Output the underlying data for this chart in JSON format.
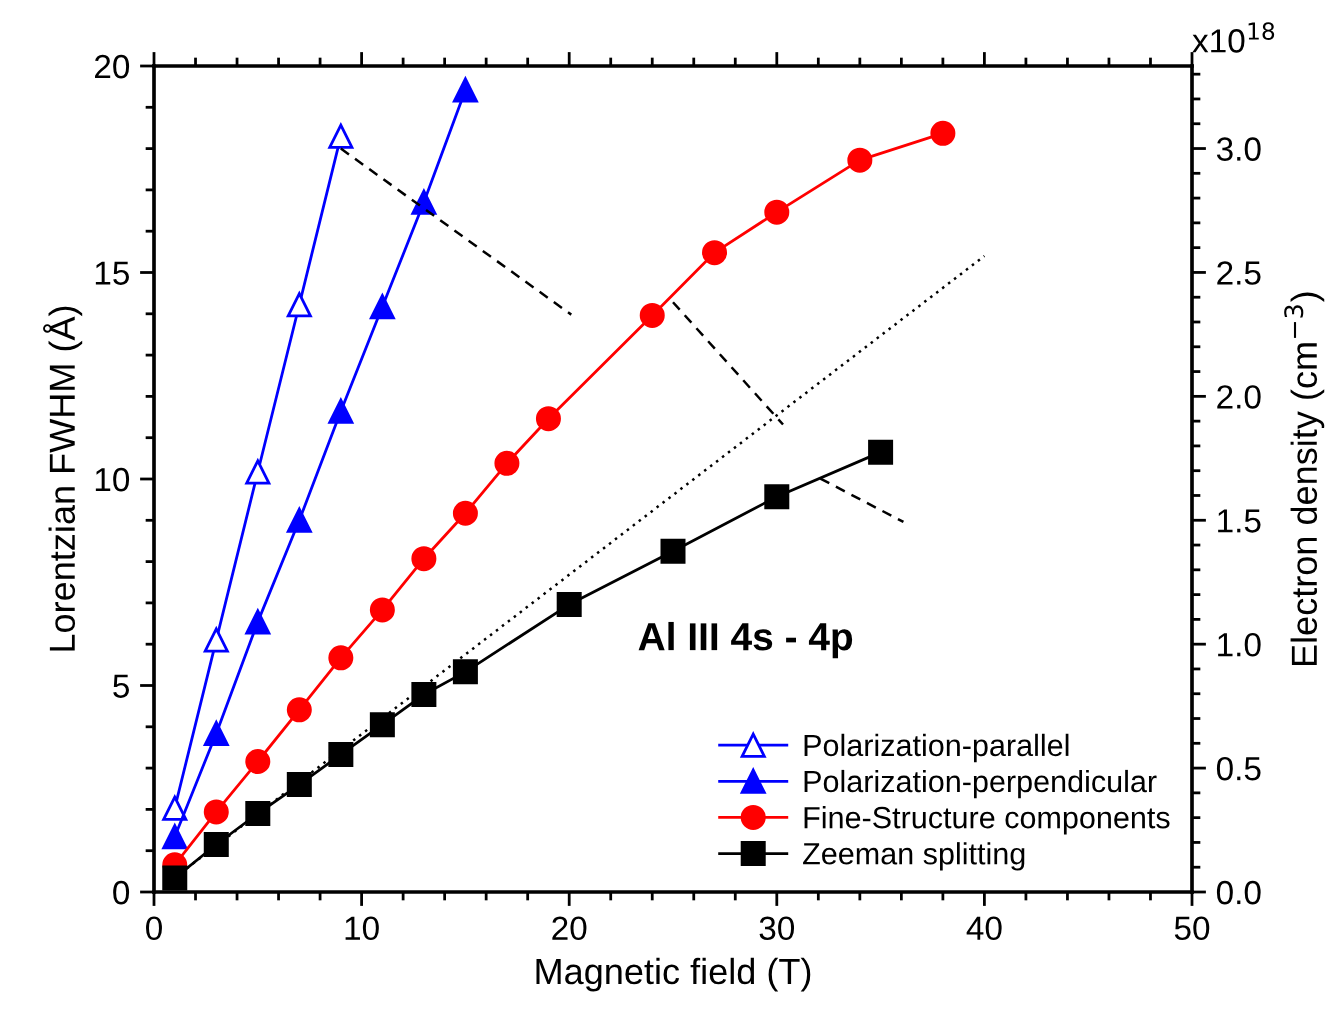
{
  "chart_data": {
    "type": "line",
    "xlabel": "Magnetic field (T)",
    "ylabel": "Lorentzian FWHM (Å)",
    "y2label": "Electron density (cm$^{−3}$)",
    "xlim": [
      0,
      50
    ],
    "ylim": [
      0,
      20
    ],
    "y2lim": [
      0,
      3.333
    ],
    "xticks": [
      0,
      {
        "value": 2,
        "label": null
      },
      {
        "value": 4,
        "label": null
      },
      {
        "value": 6,
        "label": null
      },
      {
        "value": 8,
        "label": null
      },
      10,
      {
        "value": 12,
        "label": null
      },
      {
        "value": 14,
        "label": null
      },
      {
        "value": 16,
        "label": null
      },
      {
        "value": 18,
        "label": null
      },
      20,
      {
        "value": 22,
        "label": null
      },
      {
        "value": 24,
        "label": null
      },
      {
        "value": 26,
        "label": null
      },
      {
        "value": 28,
        "label": null
      },
      30,
      {
        "value": 32,
        "label": null
      },
      {
        "value": 34,
        "label": null
      },
      {
        "value": 36,
        "label": null
      },
      {
        "value": 38,
        "label": null
      },
      40,
      {
        "value": 42,
        "label": null
      },
      {
        "value": 44,
        "label": null
      },
      {
        "value": 46,
        "label": null
      },
      {
        "value": 48,
        "label": null
      },
      50
    ],
    "yticks": [
      0,
      {
        "value": 1,
        "label": null
      },
      {
        "value": 2,
        "label": null
      },
      {
        "value": 3,
        "label": null
      },
      {
        "value": 4,
        "label": null
      },
      5,
      {
        "value": 6,
        "label": null
      },
      {
        "value": 7,
        "label": null
      },
      {
        "value": 8,
        "label": null
      },
      {
        "value": 9,
        "label": null
      },
      10,
      {
        "value": 11,
        "label": null
      },
      {
        "value": 12,
        "label": null
      },
      {
        "value": 13,
        "label": null
      },
      {
        "value": 14,
        "label": null
      },
      15,
      {
        "value": 16,
        "label": null
      },
      {
        "value": 17,
        "label": null
      },
      {
        "value": 18,
        "label": null
      },
      {
        "value": 19,
        "label": null
      },
      20
    ],
    "y2ticks": [
      {
        "value": 0,
        "label": "0.0"
      },
      {
        "value": 0.1,
        "label": null
      },
      {
        "value": 0.2,
        "label": null
      },
      {
        "value": 0.3,
        "label": null
      },
      {
        "value": 0.4,
        "label": null
      },
      0.5,
      {
        "value": 0.6,
        "label": null
      },
      {
        "value": 0.7,
        "label": null
      },
      {
        "value": 0.8,
        "label": null
      },
      {
        "value": 0.9,
        "label": null
      },
      {
        "value": 1,
        "label": "1.0"
      },
      {
        "value": 1.1,
        "label": null
      },
      {
        "value": 1.2,
        "label": null
      },
      {
        "value": 1.3,
        "label": null
      },
      {
        "value": 1.4,
        "label": null
      },
      1.5,
      {
        "value": 1.6,
        "label": null
      },
      {
        "value": 1.7,
        "label": null
      },
      {
        "value": 1.8,
        "label": null
      },
      {
        "value": 1.9,
        "label": null
      },
      {
        "value": 2,
        "label": "2.0"
      },
      {
        "value": 2.1,
        "label": null
      },
      {
        "value": 2.2,
        "label": null
      },
      {
        "value": 2.3,
        "label": null
      },
      {
        "value": 2.4,
        "label": null
      },
      2.5,
      {
        "value": 2.6,
        "label": null
      },
      {
        "value": 2.7,
        "label": null
      },
      {
        "value": 2.8,
        "label": null
      },
      {
        "value": 2.9,
        "label": null
      },
      {
        "value": 3,
        "label": "3.0"
      },
      {
        "value": 3.1,
        "label": null
      },
      {
        "value": 3.2,
        "label": null
      },
      {
        "value": 3.3,
        "label": null
      }
    ],
    "grid": false,
    "legend": "bottom right",
    "annotations": [
      "Al III 4s - 4p",
      "x10$^{18}$"
    ],
    "series": [
      {
        "name": "Polarization-parallel",
        "color": "#0000ff",
        "marker": "triangle-open",
        "x": [
          1,
          3,
          5,
          7,
          9
        ],
        "values": [
          2.03,
          6.1,
          10.17,
          14.22,
          18.3
        ]
      },
      {
        "name": "Polarization-perpendicular",
        "color": "#0000ff",
        "marker": "triangle",
        "x": [
          1,
          3,
          5,
          7,
          9,
          11,
          13,
          15
        ],
        "values": [
          1.34,
          3.84,
          6.54,
          9.0,
          11.64,
          14.17,
          16.7,
          19.42
        ]
      },
      {
        "name": "Fine-Structure components",
        "color": "#ff0000",
        "marker": "circle",
        "x": [
          1,
          3,
          5,
          7,
          9,
          11,
          13,
          15,
          17,
          19,
          24,
          27,
          30,
          34,
          38
        ],
        "values": [
          0.66,
          1.94,
          3.16,
          4.41,
          5.67,
          6.83,
          8.07,
          9.17,
          10.38,
          11.46,
          13.96,
          15.48,
          16.46,
          17.72,
          18.37
        ]
      },
      {
        "name": "Zeeman splitting",
        "color": "#000000",
        "marker": "square",
        "x": [
          1,
          3,
          5,
          7,
          9,
          11,
          13,
          15,
          20,
          25,
          30,
          35
        ],
        "values": [
          0.34,
          1.15,
          1.9,
          2.6,
          3.33,
          4.05,
          4.78,
          5.33,
          6.96,
          8.25,
          9.57,
          10.65
        ]
      },
      {
        "color": "#000000",
        "marker": "none",
        "line_style": "dotted",
        "x": [
          1,
          40
        ],
        "values": [
          0.35,
          15.4
        ]
      },
      {
        "color": "#000000",
        "marker": "none",
        "line_style": "dashed",
        "x": [
          9,
          20.1
        ],
        "values": [
          18.0,
          13.98
        ]
      },
      {
        "color": "#000000",
        "marker": "none",
        "line_style": "dashed",
        "x": [
          25,
          30.3
        ],
        "values": [
          14.28,
          11.32
        ]
      },
      {
        "color": "#000000",
        "marker": "none",
        "line_style": "dashed",
        "x": [
          32.1,
          36.1
        ],
        "values": [
          10.01,
          8.96
        ]
      }
    ]
  }
}
